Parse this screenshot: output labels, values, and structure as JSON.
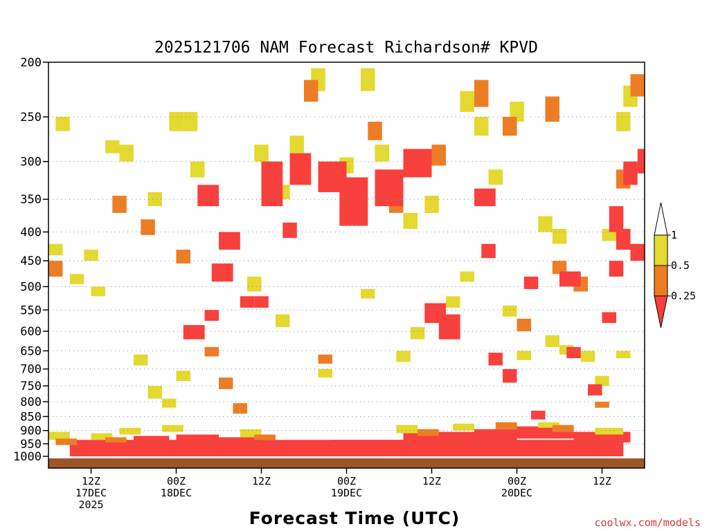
{
  "chart_data": {
    "type": "heatmap",
    "title": "2025121706 NAM Forecast Richardson# KPVD",
    "xlabel": "Forecast Time (UTC)",
    "ylabel": "",
    "y_scale": "log-pressure (inverted)",
    "y_ticks": [
      200,
      250,
      300,
      350,
      400,
      450,
      500,
      550,
      600,
      650,
      700,
      750,
      800,
      850,
      900,
      950,
      1000
    ],
    "ylim": [
      1000,
      200
    ],
    "x_ticks": [
      {
        "hour": 6,
        "lines": [
          "12Z",
          "17DEC",
          "2025"
        ]
      },
      {
        "hour": 18,
        "lines": [
          "00Z",
          "18DEC"
        ]
      },
      {
        "hour": 30,
        "lines": [
          "12Z"
        ]
      },
      {
        "hour": 42,
        "lines": [
          "00Z",
          "19DEC"
        ]
      },
      {
        "hour": 54,
        "lines": [
          "12Z"
        ]
      },
      {
        "hour": 66,
        "lines": [
          "00Z",
          "20DEC"
        ]
      },
      {
        "hour": 78,
        "lines": [
          "12Z"
        ]
      }
    ],
    "xlim": [
      0,
      84
    ],
    "grid": "dotted horizontal lines at pressure ticks",
    "colorbar": {
      "labels": [
        "1",
        "0.5",
        "0.25"
      ],
      "bins": [
        {
          "range": "0.5-1",
          "color": "#e3d930"
        },
        {
          "range": "0.25-0.5",
          "color": "#ed7d25"
        },
        {
          "range": "<0.25",
          "color": "#f8403d"
        }
      ]
    },
    "ground_color": "#9c5526",
    "cells": [
      {
        "c": "#f8403d",
        "h": [
          [
            3,
            81,
            935,
            1000
          ]
        ]
      },
      {
        "c": "#f8403d",
        "h": [
          [
            12,
            17,
            920,
            950
          ],
          [
            18,
            24,
            915,
            945
          ],
          [
            24,
            30,
            925,
            960
          ],
          [
            33,
            40,
            945,
            985
          ],
          [
            40,
            50,
            935,
            975
          ],
          [
            50,
            60,
            905,
            950
          ],
          [
            60,
            66,
            895,
            945
          ],
          [
            66,
            74,
            885,
            930
          ],
          [
            74,
            82,
            905,
            945
          ]
        ]
      },
      {
        "c": "#e3d930",
        "h": [
          [
            0,
            3,
            905,
            935
          ],
          [
            6,
            9,
            910,
            935
          ],
          [
            10,
            13,
            890,
            915
          ],
          [
            16,
            19,
            880,
            905
          ],
          [
            27,
            30,
            895,
            925
          ],
          [
            49,
            52,
            880,
            910
          ],
          [
            57,
            60,
            875,
            900
          ],
          [
            69,
            72,
            870,
            890
          ],
          [
            77,
            81,
            890,
            915
          ]
        ]
      },
      {
        "c": "#ed7d25",
        "h": [
          [
            1,
            4,
            930,
            955
          ],
          [
            8,
            11,
            925,
            945
          ],
          [
            29,
            32,
            915,
            935
          ],
          [
            52,
            55,
            895,
            920
          ],
          [
            63,
            66,
            870,
            895
          ],
          [
            71,
            74,
            880,
            905
          ]
        ]
      },
      {
        "c": "#e3d930",
        "h": [
          [
            1,
            3,
            250,
            265
          ],
          [
            8,
            10,
            275,
            290
          ],
          [
            10,
            12,
            280,
            300
          ],
          [
            14,
            16,
            340,
            360
          ],
          [
            17,
            19,
            245,
            265
          ],
          [
            19,
            21,
            245,
            265
          ],
          [
            20,
            22,
            300,
            320
          ],
          [
            31,
            34,
            330,
            350
          ],
          [
            29,
            31,
            280,
            300
          ],
          [
            34,
            36,
            270,
            290
          ],
          [
            37,
            39,
            205,
            225
          ],
          [
            41,
            43,
            295,
            315
          ],
          [
            44,
            46,
            205,
            225
          ],
          [
            46,
            48,
            280,
            300
          ],
          [
            48,
            50,
            335,
            360
          ],
          [
            50,
            52,
            370,
            395
          ],
          [
            53,
            55,
            345,
            370
          ],
          [
            58,
            60,
            225,
            245
          ],
          [
            60,
            62,
            250,
            270
          ],
          [
            62,
            64,
            310,
            330
          ],
          [
            65,
            67,
            235,
            255
          ],
          [
            69,
            71,
            375,
            400
          ],
          [
            71,
            73,
            395,
            420
          ],
          [
            78,
            80,
            395,
            415
          ],
          [
            80,
            82,
            245,
            265
          ],
          [
            81,
            83,
            220,
            240
          ],
          [
            0,
            2,
            420,
            440
          ],
          [
            3,
            5,
            475,
            495
          ],
          [
            5,
            7,
            430,
            450
          ],
          [
            6,
            8,
            500,
            520
          ],
          [
            12,
            14,
            660,
            690
          ],
          [
            14,
            16,
            750,
            790
          ],
          [
            16,
            18,
            790,
            820
          ],
          [
            18,
            20,
            705,
            735
          ],
          [
            28,
            30,
            480,
            510
          ],
          [
            32,
            34,
            560,
            590
          ],
          [
            38,
            40,
            700,
            725
          ],
          [
            44,
            46,
            505,
            525
          ],
          [
            49,
            51,
            650,
            680
          ],
          [
            51,
            53,
            590,
            620
          ],
          [
            56,
            58,
            520,
            545
          ],
          [
            58,
            60,
            470,
            490
          ],
          [
            64,
            66,
            540,
            565
          ],
          [
            66,
            68,
            650,
            675
          ],
          [
            70,
            72,
            610,
            640
          ],
          [
            72,
            74,
            635,
            660
          ],
          [
            75,
            77,
            650,
            680
          ],
          [
            77,
            79,
            720,
            750
          ],
          [
            80,
            82,
            650,
            670
          ]
        ]
      },
      {
        "c": "#ed7d25",
        "h": [
          [
            9,
            11,
            345,
            370
          ],
          [
            13,
            15,
            380,
            405
          ],
          [
            0,
            2,
            450,
            480
          ],
          [
            18,
            20,
            430,
            455
          ],
          [
            22,
            24,
            640,
            665
          ],
          [
            24,
            26,
            725,
            760
          ],
          [
            26,
            28,
            805,
            840
          ],
          [
            36,
            38,
            215,
            235
          ],
          [
            38,
            40,
            660,
            685
          ],
          [
            45,
            47,
            255,
            275
          ],
          [
            48,
            50,
            340,
            370
          ],
          [
            54,
            56,
            280,
            305
          ],
          [
            56,
            58,
            590,
            620
          ],
          [
            60,
            62,
            215,
            240
          ],
          [
            64,
            66,
            250,
            270
          ],
          [
            66,
            68,
            570,
            600
          ],
          [
            70,
            72,
            230,
            255
          ],
          [
            71,
            73,
            450,
            475
          ],
          [
            77,
            79,
            800,
            820
          ],
          [
            80,
            82,
            310,
            335
          ],
          [
            82,
            84,
            210,
            230
          ],
          [
            74,
            76,
            480,
            510
          ]
        ]
      },
      {
        "c": "#f8403d",
        "h": [
          [
            21,
            24,
            330,
            360
          ],
          [
            23,
            26,
            455,
            490
          ],
          [
            19,
            22,
            585,
            620
          ],
          [
            22,
            24,
            550,
            575
          ],
          [
            24,
            27,
            400,
            430
          ],
          [
            27,
            29,
            520,
            545
          ],
          [
            29,
            31,
            520,
            545
          ],
          [
            30,
            33,
            300,
            360
          ],
          [
            33,
            35,
            385,
            410
          ],
          [
            34,
            37,
            290,
            330
          ],
          [
            38,
            42,
            300,
            340
          ],
          [
            41,
            45,
            320,
            390
          ],
          [
            46,
            50,
            310,
            360
          ],
          [
            50,
            54,
            285,
            320
          ],
          [
            53,
            56,
            535,
            580
          ],
          [
            55,
            58,
            560,
            620
          ],
          [
            60,
            63,
            335,
            360
          ],
          [
            61,
            63,
            420,
            445
          ],
          [
            62,
            64,
            655,
            690
          ],
          [
            64,
            66,
            700,
            740
          ],
          [
            67,
            69,
            480,
            505
          ],
          [
            68,
            70,
            830,
            860
          ],
          [
            72,
            75,
            470,
            500
          ],
          [
            73,
            75,
            640,
            670
          ],
          [
            79,
            81,
            450,
            480
          ],
          [
            81,
            83,
            300,
            330
          ],
          [
            82,
            84,
            420,
            450
          ],
          [
            83,
            84,
            285,
            315
          ],
          [
            79,
            81,
            360,
            400
          ],
          [
            80,
            82,
            395,
            430
          ],
          [
            76,
            78,
            745,
            780
          ],
          [
            78,
            80,
            555,
            580
          ]
        ]
      }
    ]
  },
  "footer": {
    "credit": "coolwx.com/models"
  }
}
